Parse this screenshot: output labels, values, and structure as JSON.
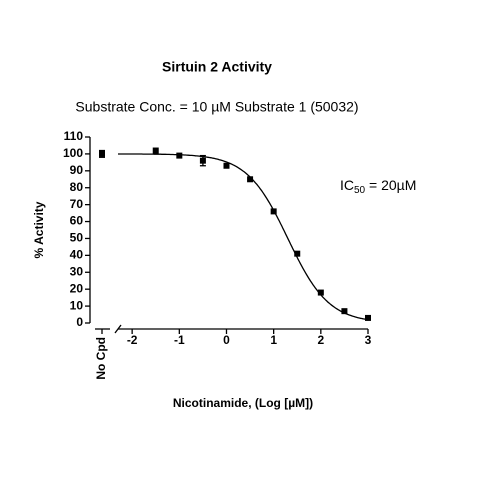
{
  "chart_data": {
    "type": "scatter",
    "title": "Sirtuin 2 Activity",
    "subtitle": "Substrate Conc. = 10 µM Substrate 1 (50032)",
    "annotation": [
      "IC",
      "50",
      " = 20µM"
    ],
    "xlabel": "Nicotinamide, (Log [µM])",
    "ylabel": "% Activity",
    "control": {
      "label": "No Cpd",
      "value": 100,
      "error": 2
    },
    "x": [
      -1.5,
      -1,
      -0.5,
      0,
      0.5,
      1,
      1.5,
      2,
      2.5,
      3
    ],
    "values": [
      102,
      99,
      96,
      93,
      85,
      66,
      41,
      18,
      7,
      3
    ],
    "errors": [
      null,
      null,
      3,
      null,
      null,
      null,
      null,
      null,
      null,
      null
    ],
    "curve": {
      "top": 100,
      "bottom": 0,
      "log_ic50": 1.3,
      "hill_slope": -1
    },
    "color": "#000000",
    "xlim": [
      -2.3,
      3
    ],
    "xticks": [
      -2,
      -1,
      0,
      1,
      2,
      3
    ],
    "ylim": [
      0,
      110
    ],
    "yticks": [
      0,
      10,
      20,
      30,
      40,
      50,
      60,
      70,
      80,
      90,
      100,
      110
    ]
  }
}
